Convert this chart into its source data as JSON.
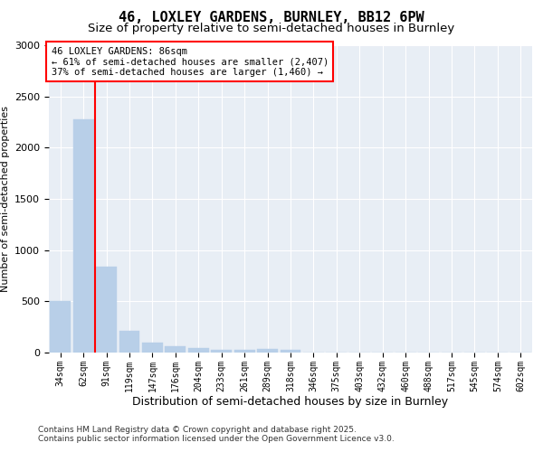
{
  "title_line1": "46, LOXLEY GARDENS, BURNLEY, BB12 6PW",
  "title_line2": "Size of property relative to semi-detached houses in Burnley",
  "xlabel": "Distribution of semi-detached houses by size in Burnley",
  "ylabel": "Number of semi-detached properties",
  "categories": [
    "34sqm",
    "62sqm",
    "91sqm",
    "119sqm",
    "147sqm",
    "176sqm",
    "204sqm",
    "233sqm",
    "261sqm",
    "289sqm",
    "318sqm",
    "346sqm",
    "375sqm",
    "403sqm",
    "432sqm",
    "460sqm",
    "488sqm",
    "517sqm",
    "545sqm",
    "574sqm",
    "602sqm"
  ],
  "values": [
    500,
    2280,
    840,
    210,
    100,
    60,
    40,
    30,
    25,
    35,
    30,
    0,
    0,
    0,
    0,
    0,
    0,
    0,
    0,
    0,
    0
  ],
  "bar_color": "#b8cfe8",
  "bar_edge_color": "#b8cfe8",
  "vline_color": "red",
  "vline_x": 1.5,
  "annotation_title": "46 LOXLEY GARDENS: 86sqm",
  "annotation_line2": "← 61% of semi-detached houses are smaller (2,407)",
  "annotation_line3": "37% of semi-detached houses are larger (1,460) →",
  "ylim": [
    0,
    3000
  ],
  "yticks": [
    0,
    500,
    1000,
    1500,
    2000,
    2500,
    3000
  ],
  "background_color": "#e8eef5",
  "footer_line1": "Contains HM Land Registry data © Crown copyright and database right 2025.",
  "footer_line2": "Contains public sector information licensed under the Open Government Licence v3.0.",
  "title_fontsize": 11,
  "subtitle_fontsize": 9.5,
  "axis_label_fontsize": 9,
  "tick_fontsize": 7,
  "annotation_fontsize": 7.5,
  "footer_fontsize": 6.5
}
